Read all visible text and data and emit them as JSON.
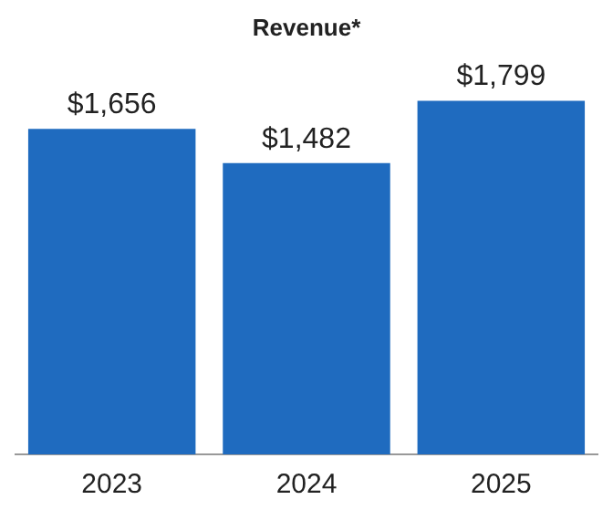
{
  "chart_data": {
    "type": "bar",
    "title": "Revenue*",
    "categories": [
      "2023",
      "2024",
      "2025"
    ],
    "values": [
      1656,
      1482,
      1799
    ],
    "color": "#1f6bbf",
    "value_labels": [
      "$1,656",
      "$1,482",
      "$1,799"
    ],
    "grid": false,
    "legend": false
  }
}
